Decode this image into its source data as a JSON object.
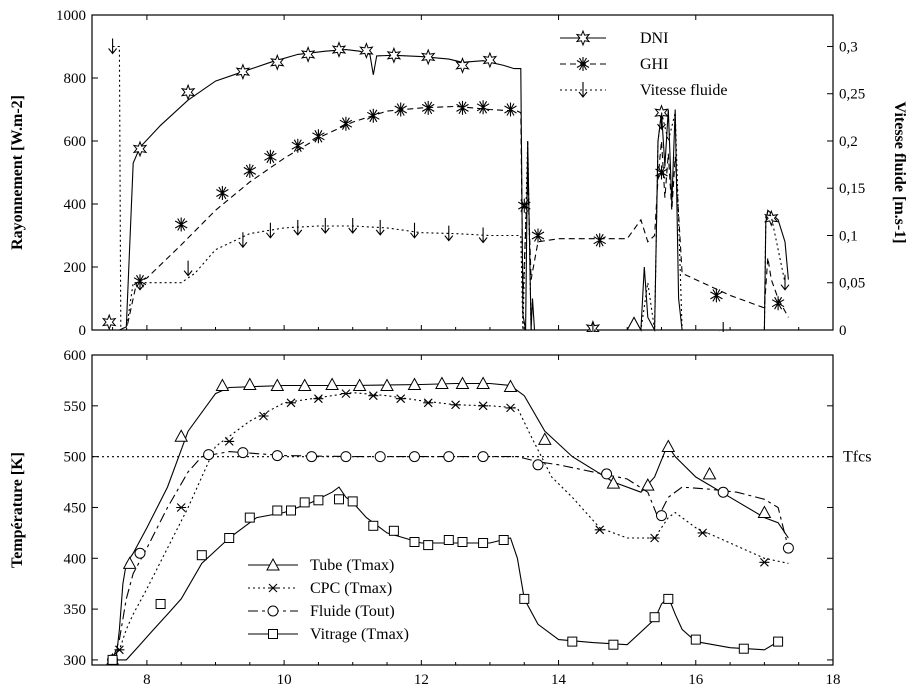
{
  "chart_data": [
    {
      "type": "line",
      "panel": "top",
      "ylabel": "Rayonnement [W.m-2]",
      "y2label": "Vitesse fluide [m.s-1]",
      "xlim": [
        7.2,
        18
      ],
      "ylim": [
        0,
        1000
      ],
      "y2lim": [
        0,
        0.3333
      ],
      "yticks": [
        0,
        200,
        400,
        600,
        800,
        1000
      ],
      "y2ticks": [
        0,
        0.05,
        0.1,
        0.15,
        0.2,
        0.25,
        0.3
      ],
      "y2tick_labels": [
        "0",
        "0,05",
        "0,1",
        "0,15",
        "0,2",
        "0,25",
        "0,3"
      ],
      "legend_position": "top-right",
      "series": [
        {
          "name": "DNI",
          "axis": "left",
          "dash": "",
          "marker": "star",
          "x": [
            7.5,
            7.6,
            7.7,
            7.8,
            7.9,
            8.2,
            8.6,
            9.0,
            9.4,
            9.8,
            10.2,
            10.6,
            10.9,
            11.1,
            11.25,
            11.3,
            11.35,
            11.6,
            12.0,
            12.4,
            12.6,
            12.9,
            13.2,
            13.35,
            13.45,
            13.48,
            13.52,
            13.55,
            13.6,
            13.62,
            13.65,
            14.0,
            15.0,
            15.1,
            15.2,
            15.25,
            15.3,
            15.4,
            15.45,
            15.5,
            15.55,
            15.6,
            15.65,
            15.7,
            15.75,
            15.8,
            16.0,
            16.5,
            17.0,
            17.02,
            17.05,
            17.1,
            17.2,
            17.3,
            17.35
          ],
          "y": [
            0,
            0,
            10,
            530,
            580,
            650,
            730,
            790,
            820,
            850,
            875,
            885,
            890,
            885,
            875,
            810,
            870,
            872,
            868,
            860,
            850,
            855,
            840,
            830,
            830,
            50,
            0,
            600,
            0,
            100,
            0,
            0,
            0,
            40,
            0,
            200,
            40,
            0,
            600,
            690,
            520,
            700,
            400,
            700,
            100,
            0,
            0,
            0,
            0,
            340,
            380,
            370,
            350,
            280,
            160
          ],
          "marker_x": [
            7.45,
            7.9,
            8.6,
            9.4,
            9.9,
            10.35,
            10.8,
            11.2,
            11.6,
            12.1,
            12.6,
            13.0,
            14.5,
            15.5,
            17.1
          ],
          "marker_y": [
            25,
            575,
            755,
            820,
            850,
            875,
            890,
            887,
            872,
            867,
            840,
            857,
            5,
            690,
            355
          ]
        },
        {
          "name": "GHI",
          "axis": "left",
          "dash": "6,4",
          "marker": "asterisk",
          "x": [
            7.5,
            7.7,
            7.85,
            8.0,
            8.5,
            9.0,
            9.5,
            10.0,
            10.5,
            11.0,
            11.5,
            12.0,
            12.5,
            13.0,
            13.4,
            13.45,
            13.48,
            13.55,
            13.6,
            13.7,
            14.0,
            14.5,
            15.0,
            15.2,
            15.3,
            15.4,
            15.45,
            15.5,
            15.55,
            15.6,
            15.65,
            15.7,
            15.8,
            16.0,
            16.5,
            17.0,
            17.05,
            17.1,
            17.2,
            17.35
          ],
          "y": [
            0,
            0,
            150,
            165,
            270,
            380,
            470,
            545,
            610,
            660,
            695,
            705,
            710,
            700,
            695,
            690,
            100,
            480,
            160,
            280,
            290,
            290,
            290,
            350,
            280,
            300,
            480,
            600,
            420,
            560,
            380,
            550,
            180,
            160,
            110,
            70,
            230,
            160,
            100,
            40
          ],
          "marker_x": [
            7.9,
            8.5,
            9.1,
            9.5,
            9.8,
            10.2,
            10.5,
            10.9,
            11.3,
            11.7,
            12.1,
            12.6,
            12.9,
            13.3,
            13.5,
            13.7,
            14.6,
            15.5,
            16.3,
            17.2
          ],
          "marker_y": [
            155,
            335,
            435,
            505,
            550,
            585,
            615,
            655,
            680,
            700,
            705,
            705,
            707,
            700,
            395,
            300,
            285,
            500,
            110,
            85
          ]
        },
        {
          "name": "Vitesse fluide",
          "axis": "right",
          "dash": "2,3",
          "marker": "arrow",
          "x": [
            7.5,
            7.55,
            7.6,
            7.62,
            7.7,
            7.8,
            8.0,
            8.5,
            8.7,
            9.0,
            9.5,
            10.0,
            10.5,
            11.0,
            11.5,
            12.0,
            12.5,
            13.0,
            13.4,
            13.45,
            13.48,
            13.55,
            13.6,
            13.65,
            14.0,
            15.0,
            15.2,
            15.3,
            15.4,
            15.45,
            15.5,
            15.6,
            15.7,
            15.8,
            16.0,
            17.0,
            17.02,
            17.05,
            17.1,
            17.3
          ],
          "y": [
            0.3,
            0.3,
            0.3,
            0.0,
            0.0,
            0.05,
            0.05,
            0.05,
            0.06,
            0.085,
            0.102,
            0.108,
            0.11,
            0.11,
            0.108,
            0.103,
            0.102,
            0.1,
            0.1,
            0.1,
            0.0,
            0.2,
            0.0,
            0.0,
            0.0,
            0.0,
            0.0,
            0.05,
            0.0,
            0.2,
            0.23,
            0.2,
            0.23,
            0.0,
            0.0,
            0.0,
            0.12,
            0.125,
            0.12,
            0.05
          ],
          "marker_x": [
            7.5,
            7.9,
            8.6,
            9.4,
            9.8,
            10.2,
            10.6,
            11.0,
            11.4,
            11.9,
            12.4,
            12.9,
            14.5,
            15.5,
            16.4,
            17.3
          ],
          "marker_y": [
            0.3,
            0.05,
            0.065,
            0.095,
            0.105,
            0.108,
            0.11,
            0.11,
            0.108,
            0.105,
            0.102,
            0.1,
            0.0,
            0.22,
            0.0,
            0.05
          ]
        }
      ]
    },
    {
      "type": "line",
      "panel": "bottom",
      "xlabel": "",
      "ylabel": "Température [K]",
      "xlim": [
        7.2,
        18
      ],
      "ylim": [
        295,
        600
      ],
      "xticks": [
        8,
        10,
        12,
        14,
        16,
        18
      ],
      "yticks": [
        300,
        350,
        400,
        450,
        500,
        550,
        600
      ],
      "legend_position": "bottom-left",
      "reference_line": {
        "label": "Tfcs",
        "y": 500
      },
      "series": [
        {
          "name": "Tube (Tmax)",
          "dash": "",
          "marker": "triangle",
          "x": [
            7.5,
            7.55,
            7.6,
            7.65,
            7.7,
            7.8,
            8.0,
            8.3,
            8.6,
            9.0,
            9.2,
            10.0,
            11.0,
            12.0,
            12.5,
            13.0,
            13.3,
            13.5,
            13.8,
            14.2,
            14.8,
            15.2,
            15.4,
            15.55,
            15.6,
            15.65,
            15.7,
            16.0,
            16.5,
            17.0,
            17.2,
            17.35
          ],
          "x_note": "",
          "y": [
            300,
            300,
            330,
            375,
            395,
            405,
            430,
            470,
            525,
            562,
            568,
            570,
            570,
            571,
            572,
            572,
            570,
            560,
            525,
            500,
            475,
            465,
            480,
            505,
            510,
            505,
            500,
            480,
            460,
            440,
            435,
            420
          ],
          "marker_x": [
            7.5,
            7.75,
            8.5,
            9.1,
            9.5,
            9.9,
            10.3,
            10.7,
            11.1,
            11.5,
            11.9,
            12.3,
            12.6,
            12.9,
            13.3,
            13.8,
            14.8,
            15.3,
            15.6,
            16.2,
            17.0
          ],
          "marker_y": [
            300,
            395,
            520,
            570,
            571,
            570,
            570,
            571,
            570,
            570,
            571,
            572,
            572,
            572,
            569,
            517,
            474,
            472,
            510,
            483,
            445
          ]
        },
        {
          "name": "CPC (Tmax)",
          "dash": "2,3",
          "marker": "cross",
          "x": [
            7.5,
            7.6,
            7.7,
            7.8,
            8.0,
            8.3,
            8.6,
            9.0,
            9.5,
            10.0,
            10.5,
            11.0,
            11.5,
            12.0,
            12.5,
            13.0,
            13.4,
            13.6,
            13.9,
            14.2,
            14.6,
            15.0,
            15.4,
            15.6,
            15.7,
            16.0,
            16.5,
            17.0,
            17.35
          ],
          "y": [
            300,
            310,
            330,
            345,
            370,
            410,
            450,
            510,
            535,
            553,
            558,
            563,
            560,
            555,
            551,
            550,
            548,
            520,
            480,
            460,
            430,
            420,
            420,
            440,
            445,
            430,
            415,
            400,
            395
          ],
          "marker_x": [
            7.6,
            8.5,
            9.2,
            9.7,
            10.1,
            10.5,
            10.9,
            11.3,
            11.7,
            12.1,
            12.5,
            12.9,
            13.3,
            14.6,
            15.4,
            16.1,
            17.0
          ],
          "marker_y": [
            310,
            450,
            515,
            540,
            553,
            557,
            562,
            560,
            557,
            553,
            551,
            550,
            548,
            428,
            420,
            425,
            396
          ]
        },
        {
          "name": "Fluide (Tout)",
          "dash": "10,4,3,4",
          "marker": "circle",
          "x": [
            7.5,
            7.6,
            7.7,
            7.8,
            8.0,
            8.3,
            8.6,
            8.8,
            9.2,
            10.0,
            11.0,
            12.0,
            13.0,
            13.4,
            13.7,
            14.0,
            14.5,
            15.0,
            15.3,
            15.45,
            15.6,
            15.8,
            16.2,
            16.6,
            17.0,
            17.2,
            17.35
          ],
          "y": [
            300,
            320,
            360,
            385,
            410,
            450,
            485,
            500,
            505,
            501,
            500,
            500,
            500,
            500,
            495,
            492,
            485,
            478,
            465,
            440,
            460,
            470,
            468,
            465,
            458,
            450,
            410
          ],
          "marker_x": [
            7.5,
            7.9,
            8.9,
            9.4,
            9.9,
            10.4,
            10.9,
            11.4,
            11.9,
            12.4,
            12.9,
            13.7,
            14.7,
            15.5,
            16.4,
            17.35
          ],
          "marker_y": [
            300,
            405,
            502,
            504,
            501,
            500,
            500,
            500,
            500,
            500,
            500,
            492,
            483,
            442,
            465,
            410
          ]
        },
        {
          "name": "Vitrage (Tmax)",
          "dash": "",
          "marker": "square",
          "x": [
            7.5,
            7.7,
            7.9,
            8.1,
            8.3,
            8.5,
            8.8,
            9.2,
            9.6,
            10.0,
            10.4,
            10.7,
            10.8,
            10.9,
            11.0,
            11.2,
            11.5,
            12.0,
            12.5,
            13.0,
            13.3,
            13.4,
            13.5,
            13.7,
            14.0,
            14.5,
            15.0,
            15.4,
            15.5,
            15.6,
            15.7,
            15.8,
            16.0,
            16.5,
            17.0,
            17.2
          ],
          "y": [
            300,
            300,
            315,
            330,
            345,
            360,
            395,
            420,
            440,
            445,
            455,
            465,
            470,
            460,
            455,
            440,
            425,
            415,
            415,
            415,
            420,
            400,
            360,
            335,
            320,
            317,
            315,
            340,
            355,
            362,
            345,
            330,
            318,
            312,
            310,
            318
          ],
          "marker_x": [
            7.5,
            8.2,
            8.8,
            9.2,
            9.5,
            9.9,
            10.1,
            10.3,
            10.5,
            10.8,
            11.0,
            11.3,
            11.6,
            11.9,
            12.1,
            12.4,
            12.6,
            12.9,
            13.2,
            13.5,
            14.2,
            14.8,
            15.4,
            15.6,
            16.0,
            16.7,
            17.2
          ],
          "marker_y": [
            300,
            355,
            403,
            420,
            440,
            447,
            447,
            455,
            457,
            458,
            456,
            432,
            427,
            416,
            413,
            418,
            416,
            415,
            418,
            360,
            318,
            315,
            342,
            360,
            320,
            311,
            318
          ]
        }
      ]
    }
  ]
}
